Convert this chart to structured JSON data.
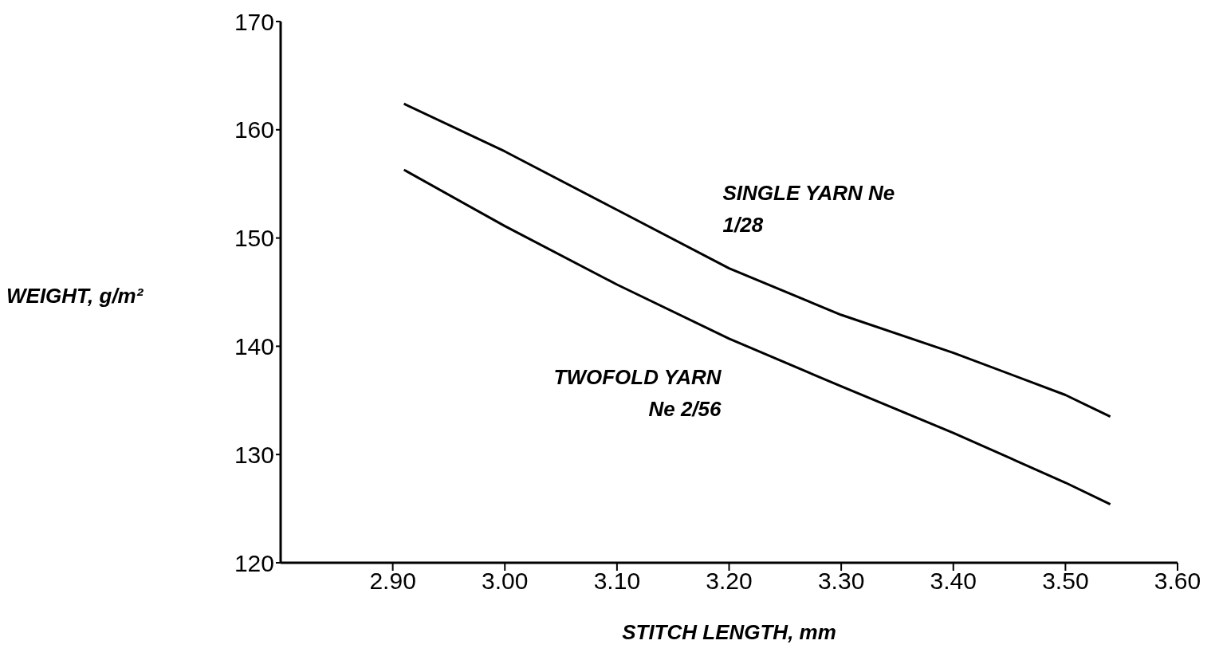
{
  "chart_data": {
    "type": "line",
    "xlabel": "STITCH LENGTH, mm",
    "ylabel": "WEIGHT, g/m²",
    "xlim": [
      2.8,
      3.6
    ],
    "xticks": [
      {
        "value": 2.9,
        "label": "2.90"
      },
      {
        "value": 3.0,
        "label": "3.00"
      },
      {
        "value": 3.1,
        "label": "3.10"
      },
      {
        "value": 3.2,
        "label": "3.20"
      },
      {
        "value": 3.3,
        "label": "3.30"
      },
      {
        "value": 3.4,
        "label": "3.40"
      },
      {
        "value": 3.5,
        "label": "3.50"
      },
      {
        "value": 3.6,
        "label": "3.60"
      }
    ],
    "ylim": [
      120,
      170
    ],
    "yticks": [
      120,
      130,
      140,
      150,
      160,
      170
    ],
    "series": [
      {
        "name": "SINGLE YARN Ne 1/28",
        "color": "#000000",
        "x": [
          2.91,
          3.0,
          3.1,
          3.2,
          3.3,
          3.4,
          3.5,
          3.54
        ],
        "values": [
          162.4,
          158.0,
          152.6,
          147.2,
          142.9,
          139.4,
          135.5,
          133.5
        ]
      },
      {
        "name": "TWOFOLD YARN Ne 2/56",
        "color": "#000000",
        "x": [
          2.91,
          3.0,
          3.1,
          3.2,
          3.3,
          3.4,
          3.5,
          3.54
        ],
        "values": [
          156.3,
          151.1,
          145.7,
          140.7,
          136.3,
          132.0,
          127.4,
          125.4
        ]
      }
    ]
  }
}
